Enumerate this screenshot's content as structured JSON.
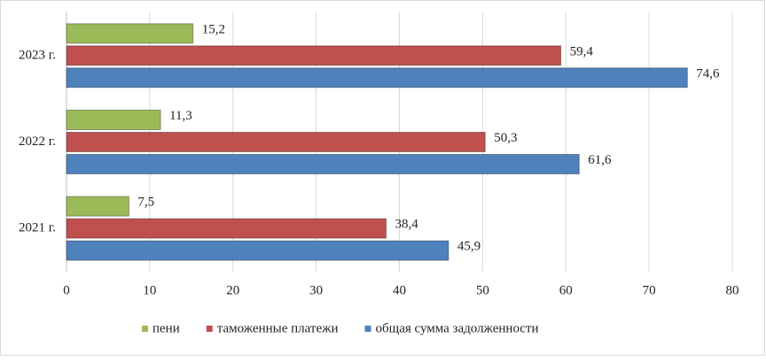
{
  "chart_data": {
    "type": "hbar",
    "categories": [
      "2021 г.",
      "2022 г.",
      "2023 г."
    ],
    "series": [
      {
        "name": "пени",
        "color": "#9bbb59",
        "values": [
          7.5,
          11.3,
          15.2
        ],
        "value_labels": [
          "7,5",
          "11,3",
          "15,2"
        ]
      },
      {
        "name": "таможенные платежи",
        "color": "#c0504d",
        "values": [
          38.4,
          50.3,
          59.4
        ],
        "value_labels": [
          "38,4",
          "50,3",
          "59,4"
        ]
      },
      {
        "name": "общая сумма задолженности",
        "color": "#4f81bd",
        "values": [
          45.9,
          61.6,
          74.6
        ],
        "value_labels": [
          "45,9",
          "61,6",
          "74,6"
        ]
      }
    ],
    "xlim": [
      0,
      80
    ],
    "xticks": [
      0,
      10,
      20,
      30,
      40,
      50,
      60,
      70,
      80
    ],
    "grid": true,
    "legend": "bottom"
  }
}
